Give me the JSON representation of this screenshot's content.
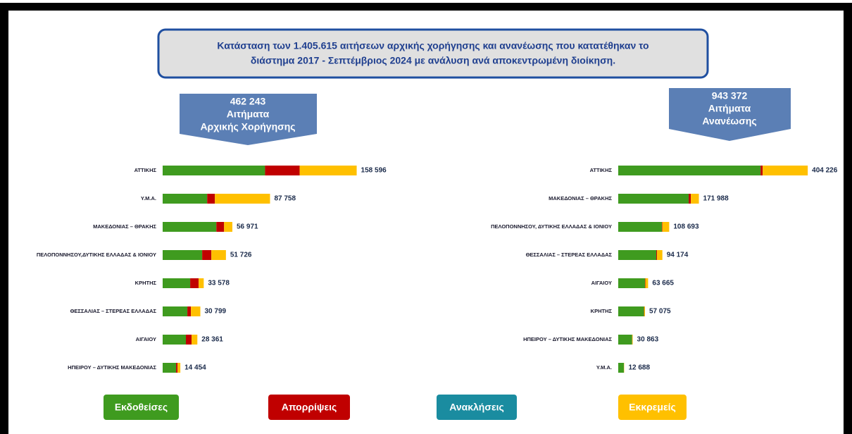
{
  "title_lines": [
    "Κατάσταση των 1.405.615 αιτήσεων αρχικής χορήγησης και ανανέωσης που κατατέθηκαν το",
    "διάστημα 2017 - Σεπτέμβριος 2024 με ανάλυση ανά αποκεντρωμένη διοίκηση."
  ],
  "chart_data": [
    {
      "type": "stacked-barh",
      "header_lines": [
        "462 243",
        "Αιτήματα",
        "Αρχικής Χορήγησης"
      ],
      "categories": [
        "ΑΤΤΙΚΗΣ",
        "Υ.Μ.Α.",
        "ΜΑΚΕΔΟΝΙΑΣ – ΘΡΑΚΗΣ",
        "ΠΕΛΟΠΟΝΝΗΣΟΥ,ΔΥΤΙΚΗΣ ΕΛΛΑΔΑΣ & ΙΟΝΙΟΥ",
        "ΚΡΗΤΗΣ",
        "ΘΕΣΣΑΛΙΑΣ – ΣΤΕΡΕΑΣ ΕΛΛΑΔΑΣ",
        "ΑΙΓΑΙΟΥ",
        "ΗΠΕΙΡΟΥ – ΔΥΤΙΚΗΣ ΜΑΚΕΔΟΝΙΑΣ"
      ],
      "series": [
        {
          "name": "Εκδοθείσες",
          "color": "#3f9b1f",
          "values": [
            83700,
            36400,
            43900,
            32300,
            22500,
            20200,
            19000,
            11000
          ]
        },
        {
          "name": "Απορρίψεις",
          "color": "#c00000",
          "values": [
            28300,
            6300,
            6300,
            7500,
            6900,
            2900,
            4600,
            1200
          ]
        },
        {
          "name": "Ανακλήσεις",
          "color": "#1a8ca0",
          "values": [
            0,
            0,
            0,
            0,
            0,
            0,
            0,
            0
          ]
        },
        {
          "name": "Εκκρεμείς",
          "color": "#ffc000",
          "values": [
            46596,
            45058,
            6771,
            11926,
            4178,
            7699,
            4761,
            2254
          ]
        }
      ],
      "totals": [
        158596,
        87758,
        56971,
        51726,
        33578,
        30799,
        28361,
        14454
      ],
      "total_labels": [
        "158 596",
        "87 758",
        "56 971",
        "51 726",
        "33 578",
        "30 799",
        "28 361",
        "14 454"
      ],
      "xlim": [
        0,
        160000
      ]
    },
    {
      "type": "stacked-barh",
      "header_lines": [
        "943 372",
        "Αιτήματα",
        "Ανανέωσης"
      ],
      "categories": [
        "ΑΤΤΙΚΗΣ",
        "ΜΑΚΕΔΟΝΙΑΣ – ΘΡΑΚΗΣ",
        "ΠΕΛΟΠΟΝΝΗΣΟΥ, ΔΥΤΙΚΗΣ ΕΛΛΑΔΑΣ & ΙΟΝΙΟΥ",
        "ΘΕΣΣΑΛΙΑΣ – ΣΤΕΡΕΑΣ ΕΛΛΑΔΑΣ",
        "ΑΙΓΑΙΟΥ",
        "ΚΡΗΤΗΣ",
        "ΗΠΕΙΡΟΥ – ΔΥΤΙΚΗΣ ΜΑΚΕΔΟΝΙΑΣ",
        "Υ.Μ.Α."
      ],
      "series": [
        {
          "name": "Εκδοθείσες",
          "color": "#3f9b1f",
          "values": [
            303600,
            150300,
            93200,
            81200,
            57100,
            55000,
            29500,
            12000
          ]
        },
        {
          "name": "Απορρίψεις",
          "color": "#c00000",
          "values": [
            4500,
            4500,
            1000,
            1500,
            800,
            500,
            300,
            200
          ]
        },
        {
          "name": "Ανακλήσεις",
          "color": "#1a8ca0",
          "values": [
            0,
            0,
            0,
            0,
            0,
            0,
            0,
            0
          ]
        },
        {
          "name": "Εκκρεμείς",
          "color": "#ffc000",
          "values": [
            96126,
            17188,
            14493,
            11474,
            5765,
            1575,
            1063,
            488
          ]
        }
      ],
      "totals": [
        404226,
        171988,
        108693,
        94174,
        63665,
        57075,
        30863,
        12688
      ],
      "total_labels": [
        "404 226",
        "171 988",
        "108 693",
        "94 174",
        "63 665",
        "57 075",
        "30 863",
        "12 688"
      ],
      "xlim": [
        0,
        410000
      ]
    }
  ]
}
